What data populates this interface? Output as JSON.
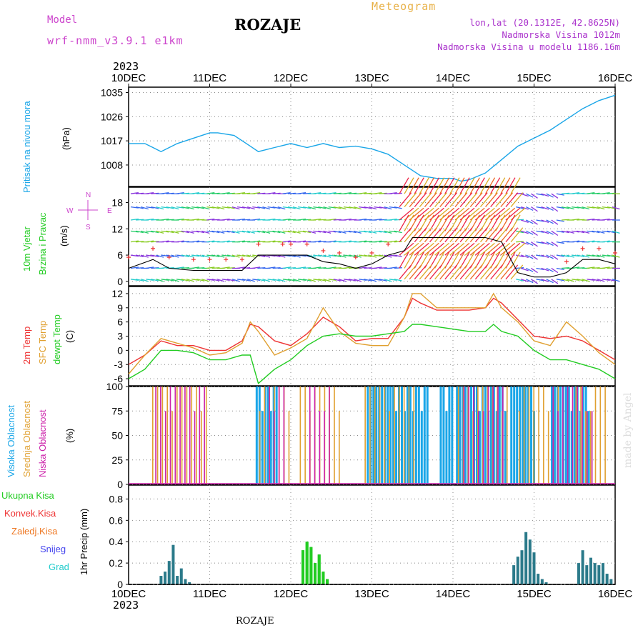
{
  "header": {
    "model_label": "Model",
    "model_name": "wrf-nmm_v3.9.1 e1km",
    "station": "ROZAJE",
    "meteogram": "Meteogram",
    "lonlat": "lon,lat (20.1312E, 42.8625N)",
    "elevation": "Nadmorska Visina 1012m",
    "model_elevation": "Nadmorska Visina u modelu 1186.16m",
    "watermark": "made by Angel",
    "footer_station": "ROZAJE"
  },
  "colors": {
    "model_label": "#cc44cc",
    "meteogram": "#e8b24a",
    "info": "#aa33cc",
    "pressure": "#1aa6e8",
    "temp2m": "#ee3333",
    "sfc_temp": "#e0a030",
    "dewpoint": "#22cc22",
    "cloud_high": "#1aa6e8",
    "cloud_mid": "#e0a030",
    "cloud_low": "#cc22aa",
    "precip_total": "#22cc22",
    "precip_conv": "#ee3333",
    "precip_frz": "#ee7722",
    "precip_snow": "#4444ee",
    "precip_graupel": "#22cccc",
    "grid": "#888888",
    "watermark": "#dddddd"
  },
  "time_axis": {
    "year": "2023",
    "ticks": [
      "10DEC",
      "11DEC",
      "12DEC",
      "13DEC",
      "14DEC",
      "15DEC",
      "16DEC"
    ]
  },
  "panels": {
    "pressure": {
      "ylabel": "Pritisak na nivou mora",
      "unit": "(hPa)",
      "ticks": [
        "1035",
        "1026",
        "1017",
        "1008"
      ]
    },
    "wind": {
      "ylabel1": "10m Vjetar",
      "ylabel2": "Brzina i Pravac",
      "unit": "(m/s)",
      "ticks": [
        "18",
        "12",
        "6",
        "0"
      ],
      "compass": {
        "w": "W",
        "e": "E",
        "n": "N",
        "s": "S"
      }
    },
    "temperature": {
      "label_2m": "2m Temp",
      "label_sfc": "SFC Temp",
      "label_dew": "dewpt Temp",
      "unit": "(C)",
      "ticks": [
        "12",
        "9",
        "6",
        "3",
        "0",
        "-3",
        "-6"
      ]
    },
    "cloud": {
      "label_high": "Visoka Oblacnost",
      "label_mid": "Srednja Oblacnost",
      "label_low": "Niska Oblacnost",
      "unit": "(%)",
      "ticks": [
        "100",
        "75",
        "50",
        "25",
        "0"
      ]
    },
    "precip": {
      "label_total": "Ukupna Kisa",
      "label_conv": "Konvek.Kisa",
      "label_frz": "Zaledj.Kisa",
      "label_snow": "Snijeg",
      "label_graupel": "Grad",
      "ylabel": "1hr Precip (mm)",
      "ticks": [
        "0.8",
        "0.6",
        "0.4",
        "0.2",
        "0"
      ]
    }
  },
  "chart_data": [
    {
      "type": "line",
      "name": "pressure",
      "ylim": [
        1000,
        1037
      ],
      "x_days": [
        0,
        0.2,
        0.3,
        0.4,
        0.6,
        0.8,
        1.0,
        1.1,
        1.3,
        1.5,
        1.6,
        1.8,
        2.0,
        2.2,
        2.4,
        2.6,
        2.8,
        3.0,
        3.2,
        3.4,
        3.6,
        3.8,
        4.0,
        4.1,
        4.2,
        4.4,
        4.6,
        4.8,
        5.0,
        5.2,
        5.4,
        5.6,
        5.8,
        6.0
      ],
      "series": [
        {
          "values": [
            1016,
            1016,
            1014.5,
            1013,
            1016,
            1018,
            1020,
            1020,
            1019,
            1015,
            1013,
            1014.5,
            1016,
            1014.5,
            1016,
            1014.5,
            1015,
            1014,
            1012,
            1008,
            1004,
            1003,
            1003,
            1002,
            1002.5,
            1005,
            1010,
            1015,
            1018,
            1021,
            1025,
            1029,
            1032,
            1034
          ]
        }
      ]
    },
    {
      "type": "line",
      "name": "wind_speed",
      "ylim": [
        -1,
        21.5
      ],
      "x_days": [
        0,
        0.3,
        0.5,
        0.8,
        1.0,
        1.2,
        1.4,
        1.6,
        1.9,
        2.0,
        2.2,
        2.4,
        2.6,
        2.8,
        3.0,
        3.2,
        3.4,
        3.5,
        3.6,
        3.8,
        4.0,
        4.2,
        4.4,
        4.6,
        4.8,
        5.0,
        5.2,
        5.4,
        5.6,
        5.8,
        6.0
      ],
      "series": [
        {
          "values": [
            3,
            5,
            3,
            2.5,
            2.5,
            2.5,
            2.5,
            6,
            6,
            6,
            6,
            4.5,
            4,
            3,
            4,
            6,
            7,
            10,
            10,
            10,
            10,
            10,
            10,
            9,
            2,
            1,
            1,
            2,
            5,
            5,
            4
          ]
        }
      ]
    },
    {
      "type": "line",
      "name": "temperature",
      "ylim": [
        -7.5,
        13.5
      ],
      "x_days": [
        0,
        0.2,
        0.4,
        0.6,
        0.8,
        1.0,
        1.2,
        1.4,
        1.5,
        1.6,
        1.8,
        2.0,
        2.2,
        2.4,
        2.6,
        2.8,
        3.0,
        3.2,
        3.4,
        3.5,
        3.6,
        3.8,
        4.0,
        4.2,
        4.4,
        4.5,
        4.6,
        4.8,
        5.0,
        5.2,
        5.4,
        5.6,
        5.8,
        6.0
      ],
      "series": [
        {
          "name": "2m Temp",
          "values": [
            -3,
            -1,
            2,
            1,
            1,
            0,
            0,
            2,
            5.5,
            5,
            2,
            1,
            3.5,
            7,
            5,
            2,
            2.5,
            2.5,
            7,
            11,
            10,
            8.5,
            8.5,
            8.5,
            9,
            11,
            10,
            6.5,
            3,
            2.5,
            3,
            2,
            0,
            -2
          ]
        },
        {
          "name": "SFC Temp",
          "values": [
            -5,
            -1,
            2.5,
            1.5,
            0.5,
            -1,
            -0.5,
            1.5,
            6,
            4,
            -1,
            0.5,
            2.5,
            9,
            4,
            1.5,
            1,
            1,
            7,
            12,
            12,
            9,
            9,
            9,
            9,
            12,
            9,
            6,
            2,
            1,
            6,
            3,
            -0.5,
            -3
          ]
        },
        {
          "name": "dewpt Temp",
          "values": [
            -6,
            -4,
            0,
            0,
            -0.5,
            -2,
            -2,
            -1,
            -1,
            -7,
            -4,
            -2,
            1,
            3,
            3.5,
            3,
            3,
            3.5,
            4,
            5.5,
            5.5,
            5,
            4.5,
            4,
            4,
            5.5,
            4,
            3,
            0,
            -2,
            -2,
            -3,
            -4,
            -6
          ]
        }
      ]
    },
    {
      "type": "bar",
      "name": "cloud_cover",
      "ylim": [
        0,
        100
      ],
      "series": [
        {
          "name": "Visoka Oblacnost",
          "segments": [
            [
              1.58,
              1.85
            ],
            [
              2.95,
              3.72
            ],
            [
              3.85,
              4.02
            ],
            [
              4.05,
              4.68
            ],
            [
              4.72,
              5.02
            ],
            [
              5.22,
              5.7
            ]
          ]
        },
        {
          "name": "Srednja Oblacnost",
          "segments": [
            [
              0.28,
              1.0
            ],
            [
              1.6,
              2.0
            ],
            [
              2.1,
              2.6
            ],
            [
              2.9,
              3.55
            ],
            [
              4.05,
              4.7
            ],
            [
              4.8,
              5.3
            ],
            [
              5.5,
              5.9
            ]
          ]
        },
        {
          "name": "Niska Oblacnost",
          "segments": [
            [
              0.3,
              0.95
            ],
            [
              1.7,
              1.9
            ],
            [
              2.2,
              2.5
            ],
            [
              4.1,
              4.6
            ],
            [
              5.2,
              5.7
            ]
          ]
        }
      ]
    },
    {
      "type": "bar",
      "name": "precipitation",
      "ylim": [
        0,
        0.93
      ],
      "x_days": [
        0.4,
        0.45,
        0.5,
        0.55,
        0.6,
        0.65,
        0.7,
        0.75,
        2.15,
        2.2,
        2.25,
        2.3,
        2.35,
        2.4,
        2.45,
        4.75,
        4.8,
        4.85,
        4.9,
        4.95,
        5.0,
        5.05,
        5.1,
        5.15,
        5.55,
        5.6,
        5.65,
        5.7,
        5.75,
        5.8,
        5.85,
        5.9,
        5.95
      ],
      "series": [
        {
          "name": "Ukupna Kisa",
          "values": [
            0.08,
            0.12,
            0.22,
            0.37,
            0.08,
            0.15,
            0.05,
            0.02,
            0.32,
            0.4,
            0.35,
            0.2,
            0.28,
            0.12,
            0.05,
            0.18,
            0.26,
            0.32,
            0.49,
            0.42,
            0.3,
            0.1,
            0.05,
            0.02,
            0.2,
            0.32,
            0.18,
            0.25,
            0.2,
            0.18,
            0.2,
            0.1,
            0.05
          ]
        }
      ]
    }
  ]
}
